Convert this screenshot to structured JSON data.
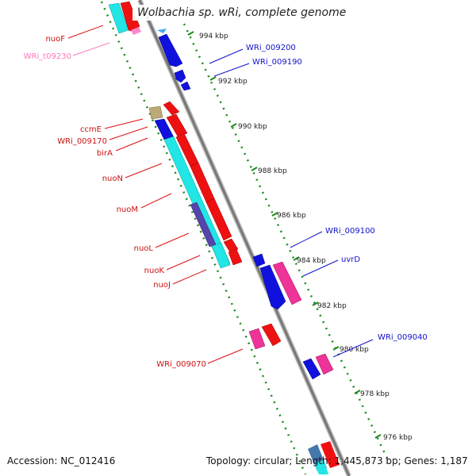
{
  "title": "Wolbachia sp. wRi, complete genome",
  "footer": {
    "accession": "Accession: NC_012416",
    "topology": "Topology: circular; Length: 1,445,873 bp; Genes: 1,187"
  },
  "colors": {
    "backbone": "#888888",
    "tick": "#1a8a1a",
    "cds_forward": "#ee1111",
    "cds_reverse": "#1111dd",
    "cyan": "#22e5e5",
    "pink": "#ee3399",
    "olive": "#bbaa77",
    "purple": "#5544aa",
    "trna": "#ff88cc"
  },
  "scale_labels": [
    "994 kbp",
    "992 kbp",
    "990 kbp",
    "988 kbp",
    "986 kbp",
    "984 kbp",
    "982 kbp",
    "980 kbp",
    "978 kbp",
    "976 kbp"
  ],
  "gene_labels_left": [
    "nuoF",
    "WRi_t09230",
    "ccmE",
    "WRi_009170",
    "birA",
    "nuoN",
    "nuoM",
    "nuoL",
    "nuoK",
    "nuoJ",
    "WRi_009070"
  ],
  "gene_labels_right": [
    "WRi_009200",
    "WRi_009190",
    "WRi_009100",
    "uvrD",
    "WRi_009040"
  ]
}
